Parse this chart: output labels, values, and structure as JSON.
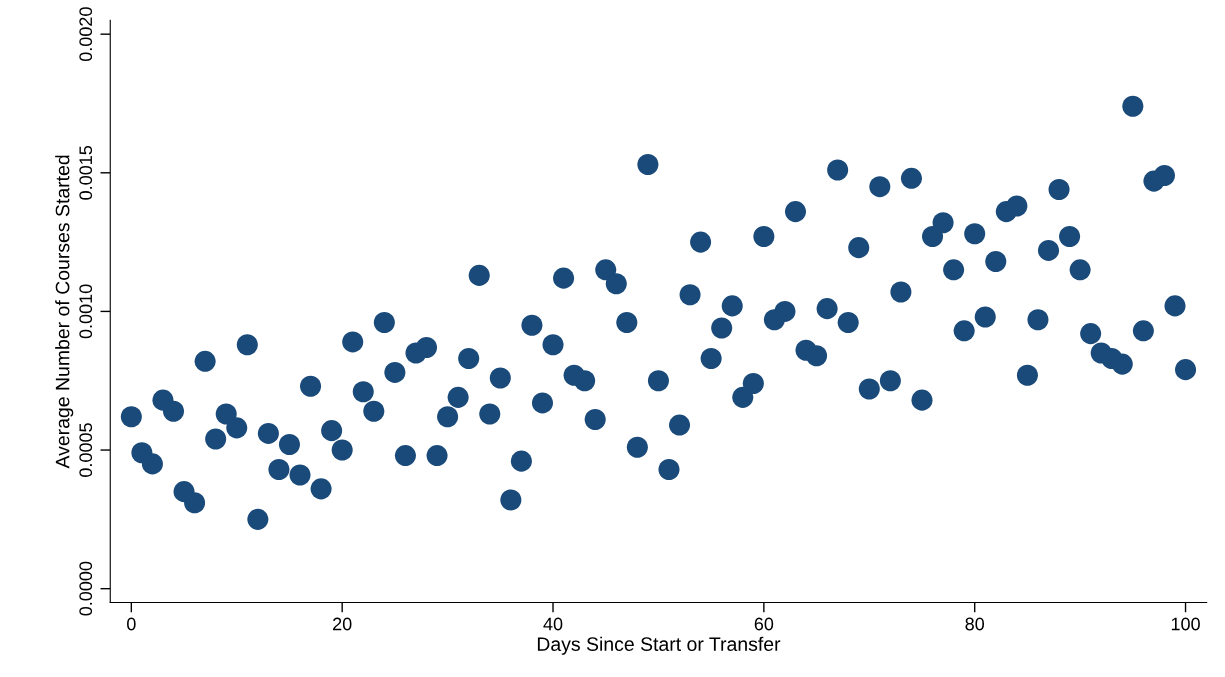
{
  "chart_data": {
    "type": "scatter",
    "xlabel": "Days Since Start or Transfer",
    "ylabel": "Average Number of Courses Started",
    "x": [
      0,
      1,
      2,
      3,
      4,
      5,
      6,
      7,
      8,
      9,
      10,
      11,
      12,
      13,
      14,
      15,
      16,
      17,
      18,
      19,
      20,
      21,
      22,
      23,
      24,
      25,
      26,
      27,
      28,
      29,
      30,
      31,
      32,
      33,
      34,
      35,
      36,
      37,
      38,
      39,
      40,
      41,
      42,
      43,
      44,
      45,
      46,
      47,
      48,
      49,
      50,
      51,
      52,
      53,
      54,
      55,
      56,
      57,
      58,
      59,
      60,
      61,
      62,
      63,
      64,
      65,
      66,
      67,
      68,
      69,
      70,
      71,
      72,
      73,
      74,
      75,
      76,
      77,
      78,
      79,
      80,
      81,
      82,
      83,
      84,
      85,
      86,
      87,
      88,
      89,
      90,
      91,
      92,
      93,
      94,
      95,
      96,
      97,
      98,
      99,
      100
    ],
    "series": [
      {
        "color": "#1a4a7a",
        "values": [
          0.00062,
          0.00049,
          0.00045,
          0.00068,
          0.00064,
          0.00035,
          0.00031,
          0.00082,
          0.00054,
          0.00063,
          0.00058,
          0.00088,
          0.00025,
          0.00056,
          0.00043,
          0.00052,
          0.00041,
          0.00073,
          0.00036,
          0.00057,
          0.0005,
          0.00089,
          0.00071,
          0.00064,
          0.00096,
          0.00078,
          0.00048,
          0.00085,
          0.00087,
          0.00048,
          0.00062,
          0.00069,
          0.00083,
          0.00113,
          0.00063,
          0.00076,
          0.00032,
          0.00046,
          0.00095,
          0.00067,
          0.00088,
          0.00112,
          0.00077,
          0.00075,
          0.00061,
          0.00115,
          0.0011,
          0.00096,
          0.00051,
          0.00153,
          0.00075,
          0.00043,
          0.00059,
          0.00106,
          0.00125,
          0.00083,
          0.00094,
          0.00102,
          0.00069,
          0.00074,
          0.00127,
          0.00097,
          0.001,
          0.00136,
          0.00086,
          0.00084,
          0.00101,
          0.00151,
          0.00096,
          0.00123,
          0.00072,
          0.00145,
          0.00075,
          0.00107,
          0.00148,
          0.00068,
          0.00127,
          0.00132,
          0.00115,
          0.00093,
          0.00128,
          0.00098,
          0.00118,
          0.00136,
          0.00138,
          0.00077,
          0.00097,
          0.00122,
          0.00144,
          0.00127,
          0.00115,
          0.00092,
          0.00085,
          0.00083,
          0.00081,
          0.00174,
          0.00093,
          0.00147,
          0.00149,
          0.00102,
          0.00079
        ]
      }
    ],
    "xlim": [
      -2,
      102
    ],
    "ylim": [
      -5e-05,
      0.00205
    ],
    "xticks": [
      0,
      20,
      40,
      60,
      80,
      100
    ],
    "yticks": [
      {
        "value": 0,
        "label": "0.0000"
      },
      {
        "value": 0.0005,
        "label": "0.0005"
      },
      {
        "value": 0.001,
        "label": "0.0010"
      },
      {
        "value": 0.0015,
        "label": "0.0015"
      },
      {
        "value": 0.002,
        "label": "0.0020"
      }
    ],
    "grid": false,
    "marker": "circle"
  }
}
